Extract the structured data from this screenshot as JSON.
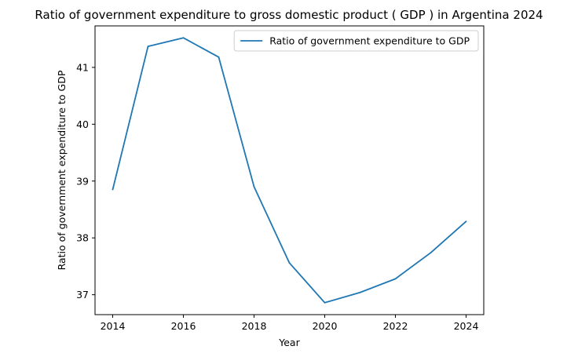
{
  "chart_data": {
    "type": "line",
    "title": "Ratio of government expenditure to gross domestic product ( GDP ) in Argentina 2024",
    "xlabel": "Year",
    "ylabel": "Ratio of government expenditure to GDP",
    "x": [
      2014,
      2015,
      2016,
      2017,
      2018,
      2019,
      2020,
      2021,
      2022,
      2023,
      2024
    ],
    "series": [
      {
        "name": "Ratio of government expenditure to GDP",
        "color": "#1f77b4",
        "values": [
          38.85,
          41.37,
          41.52,
          41.18,
          38.9,
          37.56,
          36.86,
          37.04,
          37.28,
          37.74,
          38.29
        ]
      }
    ],
    "xlim": [
      2013.5,
      2024.5
    ],
    "ylim": [
      36.65,
      41.73
    ],
    "xticks": [
      "2014",
      "2016",
      "2018",
      "2020",
      "2022",
      "2024"
    ],
    "yticks": [
      "37",
      "38",
      "39",
      "40",
      "41"
    ],
    "grid": false,
    "legend": "top-right"
  }
}
